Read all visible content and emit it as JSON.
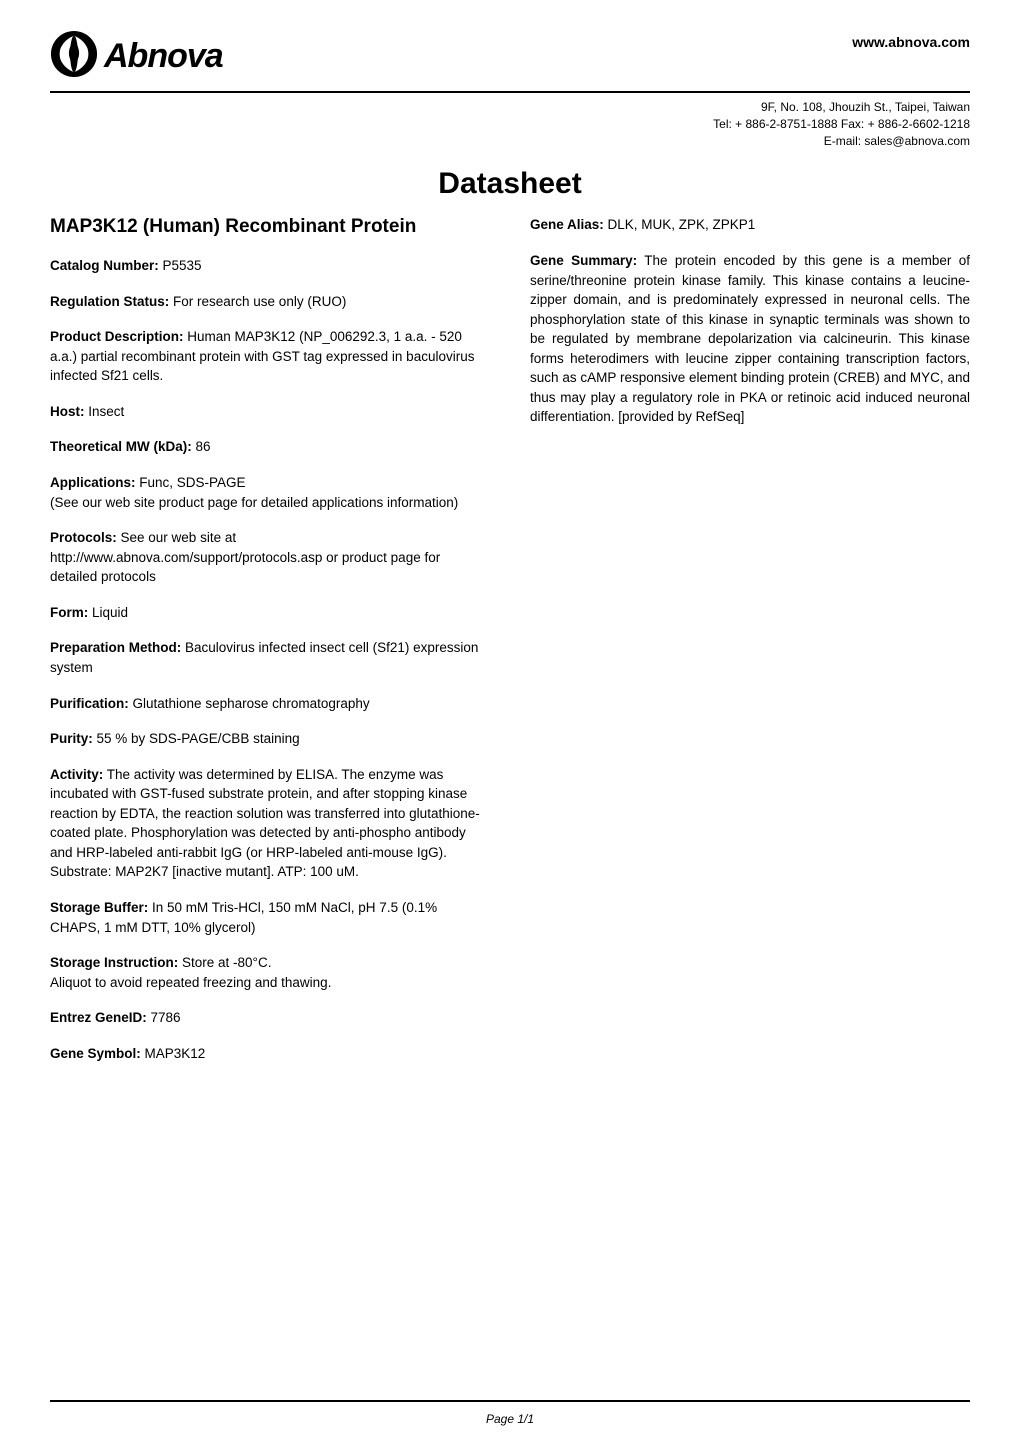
{
  "header": {
    "logo_text": "Abnova",
    "website": "www.abnova.com",
    "address": "9F, No. 108, Jhouzih St., Taipei, Taiwan",
    "phone": "Tel: + 886-2-8751-1888   Fax: + 886-2-6602-1218",
    "email": "E-mail: sales@abnova.com"
  },
  "title": "Datasheet",
  "product_title": "MAP3K12 (Human) Recombinant Protein",
  "left_fields": [
    {
      "label": "Catalog Number:",
      "value": " P5535"
    },
    {
      "label": "Regulation Status:",
      "value": " For research use only (RUO)"
    },
    {
      "label": "Product Description:",
      "value": " Human MAP3K12 (NP_006292.3, 1 a.a. - 520 a.a.) partial recombinant protein with GST tag expressed in baculovirus infected Sf21 cells."
    },
    {
      "label": "Host:",
      "value": " Insect"
    },
    {
      "label": "Theoretical MW (kDa):",
      "value": " 86"
    },
    {
      "label": "Applications:",
      "value": " Func, SDS-PAGE\n(See our web site product page for detailed applications information)"
    },
    {
      "label": "Protocols:",
      "value": " See our web site at http://www.abnova.com/support/protocols.asp or product page for detailed protocols"
    },
    {
      "label": "Form:",
      "value": " Liquid"
    },
    {
      "label": "Preparation Method:",
      "value": " Baculovirus infected insect cell (Sf21) expression system"
    },
    {
      "label": "Purification:",
      "value": " Glutathione sepharose chromatography"
    },
    {
      "label": "Purity:",
      "value": " 55 % by SDS-PAGE/CBB staining"
    },
    {
      "label": "Activity:",
      "value": " The activity was determined by ELISA. The enzyme was incubated with GST-fused substrate protein, and after stopping kinase reaction by EDTA, the reaction solution was transferred into glutathione-coated plate. Phosphorylation was detected by anti-phospho antibody and HRP-labeled anti-rabbit IgG (or HRP-labeled anti-mouse IgG). Substrate: MAP2K7 [inactive mutant]. ATP: 100 uM."
    },
    {
      "label": "Storage Buffer:",
      "value": " In 50 mM Tris-HCl, 150 mM NaCl, pH 7.5 (0.1% CHAPS, 1 mM DTT, 10% glycerol)"
    },
    {
      "label": "Storage Instruction:",
      "value": " Store at -80°C.\nAliquot to avoid repeated freezing and thawing."
    },
    {
      "label": "Entrez GeneID:",
      "value": " 7786"
    },
    {
      "label": "Gene Symbol:",
      "value": " MAP3K12"
    }
  ],
  "right_fields": [
    {
      "label": "Gene Alias:",
      "value": " DLK, MUK, ZPK, ZPKP1"
    },
    {
      "label": "Gene Summary:",
      "value": " The protein encoded by this gene is a member of serine/threonine protein kinase family. This kinase contains a leucine-zipper domain, and is predominately expressed in neuronal cells. The phosphorylation state of this kinase in synaptic terminals was shown to be regulated by membrane depolarization via calcineurin. This kinase forms heterodimers with leucine zipper containing transcription factors, such as cAMP responsive element binding protein (CREB) and MYC, and thus may play a regulatory role in PKA or retinoic acid induced neuronal differentiation. [provided by RefSeq]",
      "justify": true
    }
  ],
  "page_number": "Page 1/1",
  "logo_svg": {
    "circle_fill": "#000000",
    "ribbon_fill": "#ffffff"
  }
}
